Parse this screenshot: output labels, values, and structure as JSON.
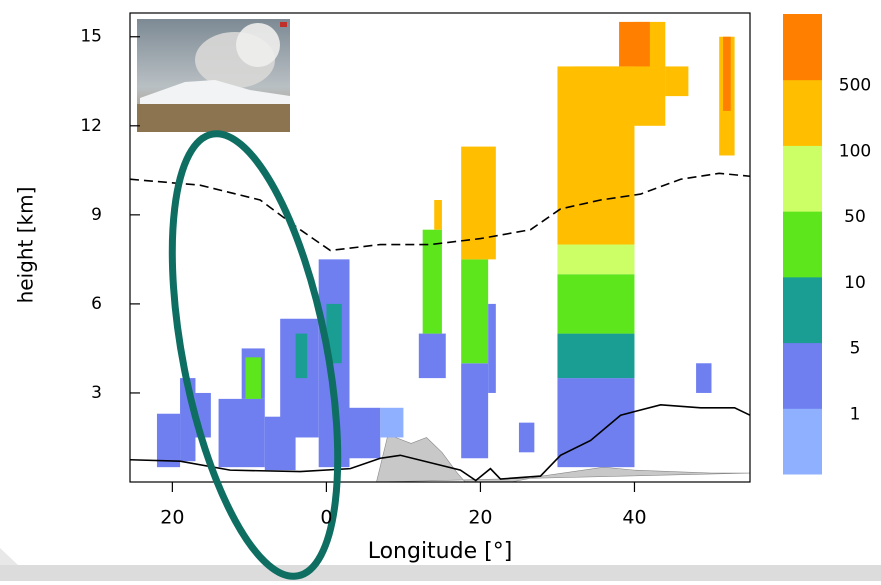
{
  "chart_data": {
    "type": "curtain",
    "xlabel": "Longitude [°]",
    "ylabel": "height [km]",
    "xlim": [
      -25.5,
      55
    ],
    "ylim": [
      0,
      15.8
    ],
    "xticks": [
      {
        "value": -20,
        "label": "20"
      },
      0,
      20,
      40
    ],
    "yticks": [
      3,
      6,
      9,
      12,
      15
    ],
    "colorbar": {
      "levels": [
        1,
        5,
        10,
        50,
        100,
        500
      ],
      "colors": [
        "#8fb0ff",
        "#6f7ff0",
        "#1a9e94",
        "#5ee61c",
        "#ccff66",
        "#ffbf00",
        "#ff8000"
      ]
    },
    "cells": [
      {
        "x": [
          -22,
          -19
        ],
        "y": [
          0.5,
          2.3
        ],
        "class": 1
      },
      {
        "x": [
          -19,
          -17
        ],
        "y": [
          0.7,
          3.5
        ],
        "class": 1
      },
      {
        "x": [
          -17,
          -15
        ],
        "y": [
          1.5,
          3.0
        ],
        "class": 1
      },
      {
        "x": [
          -14,
          -8
        ],
        "y": [
          0.5,
          2.8
        ],
        "class": 1
      },
      {
        "x": [
          -11,
          -8
        ],
        "y": [
          2.8,
          4.5
        ],
        "class": 1
      },
      {
        "x": [
          -10.5,
          -8.5
        ],
        "y": [
          2.8,
          4.2
        ],
        "class": 3
      },
      {
        "x": [
          -8,
          -4
        ],
        "y": [
          0.4,
          2.2
        ],
        "class": 1
      },
      {
        "x": [
          -6,
          -1
        ],
        "y": [
          1.5,
          5.5
        ],
        "class": 1
      },
      {
        "x": [
          -4,
          -2.5
        ],
        "y": [
          3.5,
          5
        ],
        "class": 2
      },
      {
        "x": [
          -1,
          3
        ],
        "y": [
          0.5,
          7.5
        ],
        "class": 1
      },
      {
        "x": [
          0,
          2
        ],
        "y": [
          4,
          6
        ],
        "class": 2
      },
      {
        "x": [
          3,
          7
        ],
        "y": [
          0.8,
          2.5
        ],
        "class": 1
      },
      {
        "x": [
          7,
          10
        ],
        "y": [
          1.5,
          2.5
        ],
        "class": 0
      },
      {
        "x": [
          12,
          15.5
        ],
        "y": [
          3.5,
          5
        ],
        "class": 1
      },
      {
        "x": [
          12.5,
          15
        ],
        "y": [
          5,
          8.5
        ],
        "class": 3
      },
      {
        "x": [
          14,
          15
        ],
        "y": [
          8.5,
          9.5
        ],
        "class": 5
      },
      {
        "x": [
          17.5,
          21
        ],
        "y": [
          0.8,
          4
        ],
        "class": 1
      },
      {
        "x": [
          17.5,
          21
        ],
        "y": [
          4,
          7.5
        ],
        "class": 3
      },
      {
        "x": [
          17.5,
          22
        ],
        "y": [
          7.5,
          11.3
        ],
        "class": 5
      },
      {
        "x": [
          21,
          22
        ],
        "y": [
          3,
          6
        ],
        "class": 1
      },
      {
        "x": [
          25,
          27
        ],
        "y": [
          1,
          2
        ],
        "class": 1
      },
      {
        "x": [
          30,
          40
        ],
        "y": [
          0.5,
          3.5
        ],
        "class": 1
      },
      {
        "x": [
          30,
          40
        ],
        "y": [
          3.5,
          5
        ],
        "class": 2
      },
      {
        "x": [
          30,
          40
        ],
        "y": [
          5,
          7
        ],
        "class": 3
      },
      {
        "x": [
          30,
          40
        ],
        "y": [
          7,
          8
        ],
        "class": 4
      },
      {
        "x": [
          30,
          40
        ],
        "y": [
          8,
          14
        ],
        "class": 5
      },
      {
        "x": [
          32,
          44
        ],
        "y": [
          12,
          14
        ],
        "class": 5
      },
      {
        "x": [
          40,
          44
        ],
        "y": [
          13,
          15.5
        ],
        "class": 5
      },
      {
        "x": [
          38,
          42
        ],
        "y": [
          14,
          15.5
        ],
        "class": 6
      },
      {
        "x": [
          44,
          47
        ],
        "y": [
          13,
          14
        ],
        "class": 5
      },
      {
        "x": [
          48,
          50
        ],
        "y": [
          3,
          4
        ],
        "class": 1
      },
      {
        "x": [
          51,
          53
        ],
        "y": [
          11,
          15
        ],
        "class": 5
      },
      {
        "x": [
          51.5,
          52.5
        ],
        "y": [
          12.5,
          15
        ],
        "class": 6
      }
    ],
    "tropopause": {
      "x": [
        -25.5,
        -16.4,
        -8.6,
        -3.4,
        0.5,
        7,
        13.5,
        20,
        26.5,
        30.4,
        35.6,
        40.8,
        46,
        51,
        55
      ],
      "y": [
        10.2,
        10.0,
        9.5,
        8.5,
        7.8,
        8.0,
        8.0,
        8.2,
        8.5,
        9.2,
        9.5,
        9.7,
        10.2,
        10.4,
        10.3
      ]
    },
    "surface": {
      "x": [
        -25.5,
        -19,
        -12.5,
        -3.4,
        3.1,
        7,
        9.6,
        17.4,
        19.4,
        21.3,
        22.6,
        27.8,
        30.4,
        34.3,
        38.2,
        43.4,
        48.6,
        53,
        55
      ],
      "y": [
        0.75,
        0.7,
        0.4,
        0.35,
        0.45,
        0.8,
        0.9,
        0.4,
        0.05,
        0.45,
        0.1,
        0.2,
        0.9,
        1.4,
        2.25,
        2.6,
        2.5,
        2.5,
        2.25
      ]
    },
    "terrain": {
      "x": [
        6.5,
        8,
        9,
        11,
        13,
        15,
        17,
        18,
        24,
        28,
        36,
        40,
        50,
        55
      ],
      "y": [
        0,
        1.6,
        1.5,
        1.3,
        1.5,
        1.0,
        0.3,
        0,
        0,
        0.2,
        0.5,
        0.4,
        0.3,
        0.3
      ]
    }
  }
}
